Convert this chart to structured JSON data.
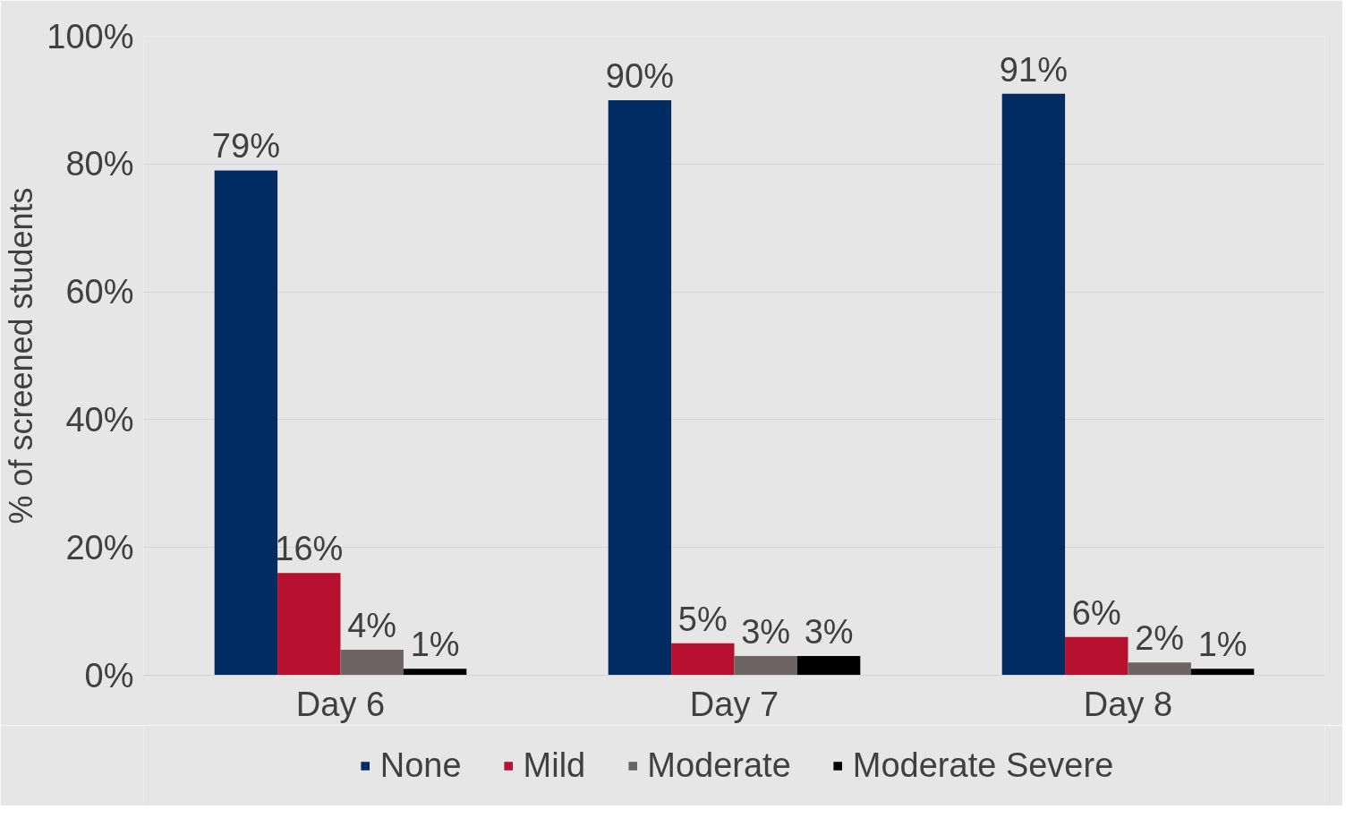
{
  "chart_data": {
    "type": "bar",
    "ylabel": "% of screened students",
    "categories": [
      "Day 6",
      "Day 7",
      "Day 8"
    ],
    "series": [
      {
        "name": "None",
        "color": "#002b63",
        "values": [
          79,
          90,
          91
        ],
        "value_labels": [
          "79%",
          "90%",
          "91%"
        ]
      },
      {
        "name": "Mild",
        "color": "#b8102f",
        "values": [
          16,
          5,
          6
        ],
        "value_labels": [
          "16%",
          "5%",
          "6%"
        ]
      },
      {
        "name": "Moderate",
        "color": "#6b6462",
        "values": [
          4,
          3,
          2
        ],
        "value_labels": [
          "4%",
          "3%",
          "2%"
        ]
      },
      {
        "name": "Moderate Severe",
        "color": "#000000",
        "values": [
          1,
          3,
          1
        ],
        "value_labels": [
          "1%",
          "3%",
          "1%"
        ]
      }
    ],
    "ylim": [
      0,
      100
    ],
    "yticks": [
      {
        "value": 0,
        "label": "0%"
      },
      {
        "value": 20,
        "label": "20%"
      },
      {
        "value": 40,
        "label": "40%"
      },
      {
        "value": 60,
        "label": "60%"
      },
      {
        "value": 80,
        "label": "80%"
      },
      {
        "value": 100,
        "label": "100%"
      }
    ],
    "grid": "y",
    "legend": "bottom"
  }
}
